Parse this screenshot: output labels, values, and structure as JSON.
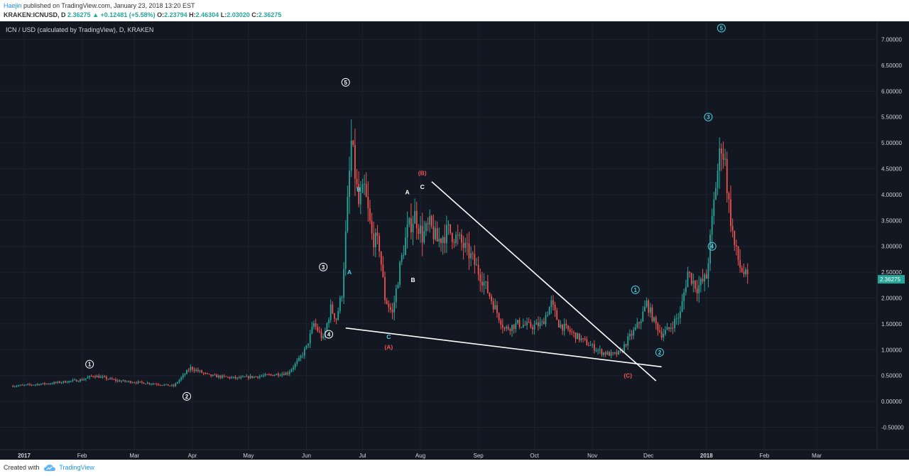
{
  "header": {
    "author": "Haejin",
    "published": "published on TradingView.com, January 23, 2018 13:20 EST",
    "symbol": "KRAKEN:ICNUSD, D",
    "close_label": "2.36275",
    "change": "+0.12481 (+5.58%)",
    "o_label": "O:",
    "o_value": "2.23794",
    "h_label": "H:",
    "h_value": "2.46304",
    "l_label": "L:",
    "l_value": "2.03020",
    "c_label": "C:",
    "c_value": "2.36275"
  },
  "footer": {
    "created_with": "Created with",
    "brand": "TradingView"
  },
  "colors": {
    "background": "#131722",
    "up": "#26a69a",
    "down": "#ef5350",
    "grid": "#1e2230",
    "axis_text": "#d1d4dc",
    "last_price_bg": "#26a69a",
    "wave_white": "#ffffff",
    "wave_teal": "#4dd0e1",
    "wave_red": "#ef5350"
  },
  "chart_data": {
    "type": "candlestick",
    "title": "ICN / USD (calculated by TradingView), D, KRAKEN",
    "x_axis_labels": [
      "2017",
      "Feb",
      "Mar",
      "Apr",
      "May",
      "Jun",
      "Jul",
      "Aug",
      "Sep",
      "Oct",
      "Nov",
      "Dec",
      "2018",
      "Feb",
      "Mar"
    ],
    "y_axis_labels": [
      "7.00000",
      "6.50000",
      "6.00000",
      "5.50000",
      "5.00000",
      "4.50000",
      "4.00000",
      "3.50000",
      "3.00000",
      "2.50000",
      "2.00000",
      "1.50000",
      "1.00000",
      "0.50000",
      "0.00000",
      "-0.50000"
    ],
    "ylim": [
      -0.5,
      7.0
    ],
    "xlim": [
      "2017-01-01",
      "2018-03-15"
    ],
    "grid": true,
    "last_price": 2.36275,
    "last_price_label": "2.36275",
    "price_path": [
      [
        "2016-12-26",
        0.3
      ],
      [
        "2017-01-15",
        0.35
      ],
      [
        "2017-02-01",
        0.42
      ],
      [
        "2017-02-07",
        0.5
      ],
      [
        "2017-02-20",
        0.4
      ],
      [
        "2017-03-10",
        0.35
      ],
      [
        "2017-03-22",
        0.3
      ],
      [
        "2017-03-31",
        0.65
      ],
      [
        "2017-04-10",
        0.5
      ],
      [
        "2017-04-25",
        0.45
      ],
      [
        "2017-05-10",
        0.5
      ],
      [
        "2017-05-22",
        0.55
      ],
      [
        "2017-05-28",
        0.8
      ],
      [
        "2017-06-01",
        1.05
      ],
      [
        "2017-06-05",
        1.5
      ],
      [
        "2017-06-10",
        1.2
      ],
      [
        "2017-06-14",
        1.8
      ],
      [
        "2017-06-17",
        1.6
      ],
      [
        "2017-06-20",
        2.1
      ],
      [
        "2017-06-22",
        3.2
      ],
      [
        "2017-06-25",
        5.0
      ],
      [
        "2017-06-29",
        3.8
      ],
      [
        "2017-07-02",
        4.1
      ],
      [
        "2017-07-06",
        3.2
      ],
      [
        "2017-07-10",
        3.0
      ],
      [
        "2017-07-13",
        2.0
      ],
      [
        "2017-07-17",
        1.7
      ],
      [
        "2017-07-21",
        2.6
      ],
      [
        "2017-07-25",
        3.3
      ],
      [
        "2017-07-29",
        3.6
      ],
      [
        "2017-08-02",
        3.2
      ],
      [
        "2017-08-06",
        3.4
      ],
      [
        "2017-08-10",
        3.1
      ],
      [
        "2017-08-16",
        3.3
      ],
      [
        "2017-08-22",
        3.1
      ],
      [
        "2017-08-28",
        2.8
      ],
      [
        "2017-09-04",
        2.3
      ],
      [
        "2017-09-10",
        1.8
      ],
      [
        "2017-09-15",
        1.4
      ],
      [
        "2017-09-22",
        1.5
      ],
      [
        "2017-09-30",
        1.45
      ],
      [
        "2017-10-05",
        1.5
      ],
      [
        "2017-10-10",
        1.9
      ],
      [
        "2017-10-14",
        1.5
      ],
      [
        "2017-10-22",
        1.3
      ],
      [
        "2017-10-30",
        1.1
      ],
      [
        "2017-11-06",
        0.95
      ],
      [
        "2017-11-12",
        0.9
      ],
      [
        "2017-11-16",
        0.95
      ],
      [
        "2017-11-20",
        1.2
      ],
      [
        "2017-11-24",
        1.4
      ],
      [
        "2017-11-27",
        1.6
      ],
      [
        "2017-11-30",
        1.9
      ],
      [
        "2017-12-04",
        1.55
      ],
      [
        "2017-12-08",
        1.3
      ],
      [
        "2017-12-12",
        1.4
      ],
      [
        "2017-12-18",
        1.7
      ],
      [
        "2017-12-22",
        2.5
      ],
      [
        "2017-12-27",
        2.2
      ],
      [
        "2018-01-01",
        2.4
      ],
      [
        "2018-01-03",
        3.1
      ],
      [
        "2018-01-06",
        4.2
      ],
      [
        "2018-01-09",
        5.0
      ],
      [
        "2018-01-11",
        4.6
      ],
      [
        "2018-01-13",
        3.8
      ],
      [
        "2018-01-16",
        3.0
      ],
      [
        "2018-01-19",
        2.6
      ],
      [
        "2018-01-23",
        2.36
      ]
    ],
    "trendlines": [
      {
        "from": [
          "2017-06-22",
          1.42
        ],
        "to": [
          "2017-12-08",
          0.67
        ]
      },
      {
        "from": [
          "2017-08-07",
          4.25
        ],
        "to": [
          "2017-12-05",
          0.4
        ]
      }
    ],
    "wave_labels": [
      {
        "text": "1",
        "date": "2017-02-05",
        "price": 0.72,
        "circled": true,
        "color": "white"
      },
      {
        "text": "2",
        "date": "2017-03-29",
        "price": 0.1,
        "circled": true,
        "color": "white"
      },
      {
        "text": "3",
        "date": "2017-06-10",
        "price": 2.6,
        "circled": true,
        "color": "white"
      },
      {
        "text": "4",
        "date": "2017-06-13",
        "price": 1.3,
        "circled": true,
        "color": "white"
      },
      {
        "text": "5",
        "date": "2017-06-22",
        "price": 6.17,
        "circled": true,
        "color": "white"
      },
      {
        "text": "A",
        "date": "2017-06-24",
        "price": 2.5,
        "circled": false,
        "color": "teal"
      },
      {
        "text": "B",
        "date": "2017-06-29",
        "price": 4.1,
        "circled": false,
        "color": "teal"
      },
      {
        "text": "C",
        "date": "2017-07-15",
        "price": 1.25,
        "circled": false,
        "color": "teal"
      },
      {
        "text": "(A)",
        "date": "2017-07-15",
        "price": 1.05,
        "circled": false,
        "color": "red"
      },
      {
        "text": "A",
        "date": "2017-07-25",
        "price": 4.05,
        "circled": false,
        "color": "white"
      },
      {
        "text": "B",
        "date": "2017-07-28",
        "price": 2.35,
        "circled": false,
        "color": "white"
      },
      {
        "text": "C",
        "date": "2017-08-02",
        "price": 4.15,
        "circled": false,
        "color": "white"
      },
      {
        "text": "(B)",
        "date": "2017-08-02",
        "price": 4.42,
        "circled": false,
        "color": "red"
      },
      {
        "text": "(C)",
        "date": "2017-11-20",
        "price": 0.5,
        "circled": false,
        "color": "red"
      },
      {
        "text": "1",
        "date": "2017-11-24",
        "price": 2.16,
        "circled": true,
        "color": "teal"
      },
      {
        "text": "2",
        "date": "2017-12-07",
        "price": 0.95,
        "circled": true,
        "color": "teal"
      },
      {
        "text": "3",
        "date": "2018-01-02",
        "price": 5.5,
        "circled": true,
        "color": "teal"
      },
      {
        "text": "4",
        "date": "2018-01-04",
        "price": 3.0,
        "circled": true,
        "color": "teal"
      },
      {
        "text": "5",
        "date": "2018-01-09",
        "price": 7.22,
        "circled": true,
        "color": "teal"
      }
    ]
  }
}
